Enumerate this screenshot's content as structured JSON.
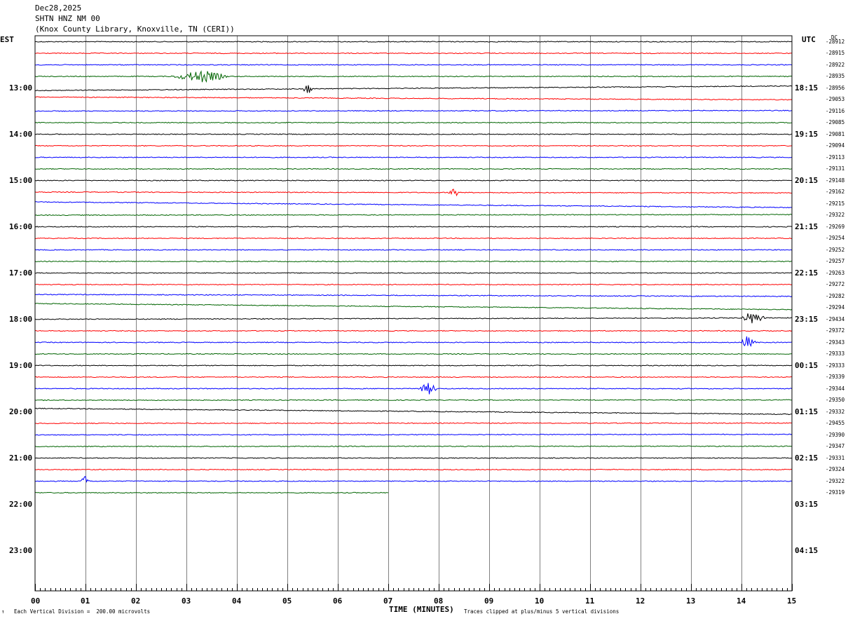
{
  "header": {
    "date": "Dec28,2025",
    "station": "SHTN HNZ NM 00",
    "location": "(Knox County Library, Knoxville, TN (CERI))"
  },
  "left_axis_title": "EST",
  "right_axis_title": "UTC",
  "dc_title": "DC",
  "footer": {
    "scale_note": "Each Vertical Division =  200.00 microvolts",
    "clip_note": "Traces clipped at plus/minus 5 vertical divisions",
    "corner_mark": "↑"
  },
  "colors": {
    "trace_cycle": [
      "#000000",
      "#ff0000",
      "#0000ff",
      "#006400"
    ],
    "grid": "#808080",
    "axis": "#000000"
  },
  "chart_data": {
    "type": "line",
    "title": "",
    "xlabel": "TIME (MINUTES)",
    "ylabel": "",
    "xlim": [
      0,
      15
    ],
    "x_ticks": [
      "00",
      "01",
      "02",
      "03",
      "04",
      "05",
      "06",
      "07",
      "08",
      "09",
      "10",
      "11",
      "12",
      "13",
      "14",
      "15"
    ],
    "grid": true,
    "left_hour_labels": [
      "13:00",
      "14:00",
      "15:00",
      "16:00",
      "17:00",
      "18:00",
      "19:00",
      "20:00",
      "21:00",
      "22:00",
      "23:00"
    ],
    "right_hour_labels": [
      "18:15",
      "19:15",
      "20:15",
      "21:15",
      "22:15",
      "23:15",
      "00:15",
      "01:15",
      "02:15",
      "03:15",
      "04:15"
    ],
    "trace_dc_offsets": [
      "-28912",
      "-28915",
      "-28922",
      "-28935",
      "-28956",
      "-29053",
      "-29116",
      "-29085",
      "-29081",
      "-29094",
      "-29113",
      "-29131",
      "-29148",
      "-29162",
      "-29215",
      "-29322",
      "-29269",
      "-29254",
      "-29252",
      "-29257",
      "-29263",
      "-29272",
      "-29282",
      "-29294",
      "-29434",
      "-29372",
      "-29343",
      "-29333",
      "-29333",
      "-29339",
      "-29344",
      "-29350",
      "-29332",
      "-29455",
      "-29390",
      "-29347",
      "-29331",
      "-29324",
      "-29322",
      "-29319"
    ],
    "series": [
      {
        "values": [
          0,
          0
        ]
      },
      {
        "values": [
          0,
          0
        ]
      },
      {
        "values": [
          0,
          0
        ]
      },
      {
        "values": [
          0,
          0
        ],
        "events": [
          {
            "start": 2.7,
            "end": 3.8,
            "peak": 3.3
          }
        ]
      },
      {
        "values": [
          0.9,
          -0.7
        ],
        "events": [
          {
            "start": 5.3,
            "end": 5.5,
            "peak": 5.4
          }
        ]
      },
      {
        "values": [
          -0.9,
          0.1
        ]
      },
      {
        "values": [
          0,
          -0.2
        ]
      },
      {
        "values": [
          0,
          0
        ]
      },
      {
        "values": [
          0,
          0
        ]
      },
      {
        "values": [
          0,
          0
        ]
      },
      {
        "values": [
          0,
          0
        ]
      },
      {
        "values": [
          0,
          0
        ]
      },
      {
        "values": [
          0,
          0
        ]
      },
      {
        "values": [
          0,
          0.3
        ],
        "events": [
          {
            "start": 8.2,
            "end": 8.4,
            "peak": 8.3
          }
        ]
      },
      {
        "values": [
          -0.6,
          1.4
        ]
      },
      {
        "values": [
          0,
          -0.2
        ]
      },
      {
        "values": [
          0,
          0
        ]
      },
      {
        "values": [
          0,
          0
        ]
      },
      {
        "values": [
          0,
          0
        ]
      },
      {
        "values": [
          0,
          0
        ]
      },
      {
        "values": [
          0,
          0
        ]
      },
      {
        "values": [
          0,
          0
        ]
      },
      {
        "values": [
          -0.6,
          0.1
        ]
      },
      {
        "values": [
          -1.5,
          0.7
        ]
      },
      {
        "values": [
          0,
          -0.5
        ],
        "events": [
          {
            "start": 14.0,
            "end": 14.5,
            "peak": 14.2
          }
        ]
      },
      {
        "values": [
          0,
          0
        ]
      },
      {
        "values": [
          0,
          0
        ],
        "events": [
          {
            "start": 14.0,
            "end": 14.3,
            "peak": 14.1
          }
        ]
      },
      {
        "values": [
          0,
          0
        ]
      },
      {
        "values": [
          0,
          0
        ]
      },
      {
        "values": [
          0,
          0
        ]
      },
      {
        "values": [
          0,
          0
        ],
        "events": [
          {
            "start": 7.6,
            "end": 7.95,
            "peak": 7.8
          }
        ]
      },
      {
        "values": [
          0,
          -0.1
        ]
      },
      {
        "values": [
          -1.2,
          0.9
        ]
      },
      {
        "values": [
          0,
          -0.1
        ]
      },
      {
        "values": [
          0,
          -0.2
        ]
      },
      {
        "values": [
          0,
          -0.1
        ]
      },
      {
        "values": [
          0,
          0
        ]
      },
      {
        "values": [
          0,
          0
        ]
      },
      {
        "values": [
          0,
          0
        ],
        "events": [
          {
            "start": 0.9,
            "end": 1.1,
            "peak": 1.0
          }
        ]
      },
      {
        "values": [
          0,
          0
        ],
        "end_minute": 7.0
      }
    ]
  }
}
